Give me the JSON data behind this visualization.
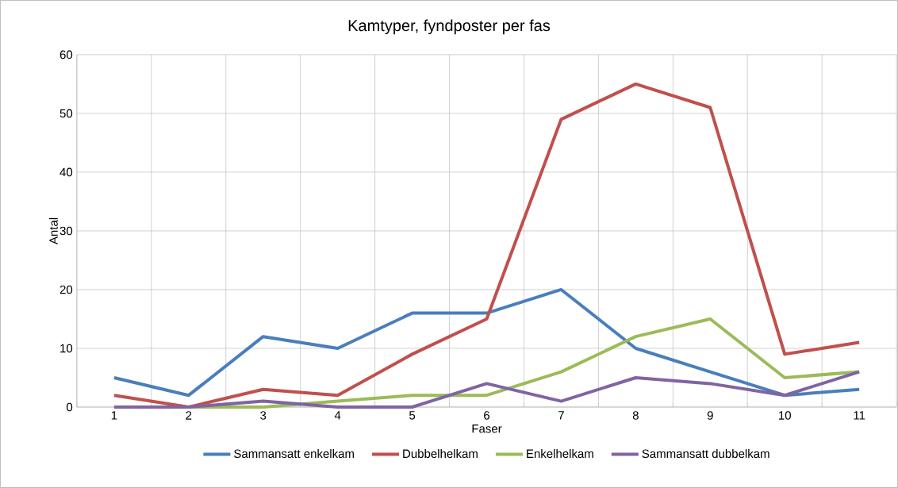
{
  "chart_data": {
    "type": "line",
    "title": "Kamtyper, fyndposter per fas",
    "xlabel": "Faser",
    "ylabel": "Antal",
    "categories": [
      "1",
      "2",
      "3",
      "4",
      "5",
      "6",
      "7",
      "8",
      "9",
      "10",
      "11"
    ],
    "series": [
      {
        "name": "Sammansatt enkelkam",
        "color": "#4a7ebb",
        "values": [
          5,
          2,
          12,
          10,
          16,
          16,
          20,
          10,
          6,
          2,
          3
        ]
      },
      {
        "name": "Dubbelhelkam",
        "color": "#c0504d",
        "values": [
          2,
          0,
          3,
          2,
          9,
          15,
          49,
          55,
          51,
          9,
          11
        ]
      },
      {
        "name": "Enkelhelkam",
        "color": "#9bbb59",
        "values": [
          0,
          0,
          0,
          1,
          2,
          2,
          6,
          12,
          15,
          5,
          6
        ]
      },
      {
        "name": "Sammansatt dubbelkam",
        "color": "#8064a2",
        "values": [
          0,
          0,
          1,
          0,
          0,
          4,
          1,
          5,
          4,
          2,
          6
        ]
      }
    ],
    "ylim": [
      0,
      60
    ],
    "yticks": [
      0,
      10,
      20,
      30,
      40,
      50,
      60
    ],
    "grid": true,
    "legend": "bottom",
    "marker": "none",
    "line_style": "solid"
  }
}
